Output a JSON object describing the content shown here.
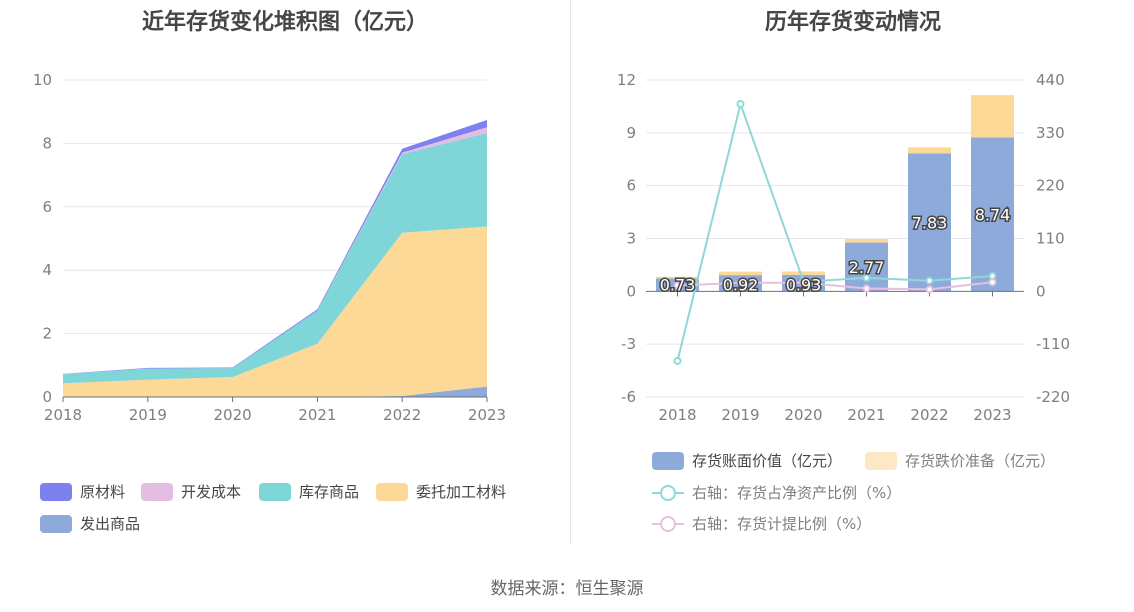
{
  "source_label": "数据来源：恒生聚源",
  "chart_data": [
    {
      "type": "area",
      "stacked": true,
      "title": "近年存货变化堆积图（亿元）",
      "categories": [
        "2018",
        "2019",
        "2020",
        "2021",
        "2022",
        "2023"
      ],
      "ylim": [
        0,
        10
      ],
      "yticks": [
        0,
        2,
        4,
        6,
        8,
        10
      ],
      "series": [
        {
          "name": "发出商品",
          "color": "#8eaadb",
          "values": [
            0.0,
            0.0,
            0.0,
            0.0,
            0.03,
            0.33
          ]
        },
        {
          "name": "委托加工材料",
          "color": "#fdd998",
          "values": [
            0.43,
            0.55,
            0.63,
            1.68,
            5.15,
            5.05
          ]
        },
        {
          "name": "库存商品",
          "color": "#7fd6d9",
          "values": [
            0.29,
            0.35,
            0.28,
            1.05,
            2.48,
            2.95
          ]
        },
        {
          "name": "开发成本",
          "color": "#e5bde0",
          "values": [
            0.0,
            0.0,
            0.0,
            0.0,
            0.05,
            0.18
          ]
        },
        {
          "name": "原材料",
          "color": "#7f80f0",
          "values": [
            0.01,
            0.02,
            0.02,
            0.04,
            0.12,
            0.23
          ]
        }
      ],
      "legend": [
        "原材料",
        "开发成本",
        "库存商品",
        "委托加工材料",
        "发出商品"
      ],
      "legend_position": "bottom-left"
    },
    {
      "type": "bar+line",
      "title": "历年存货变动情况",
      "categories": [
        "2018",
        "2019",
        "2020",
        "2021",
        "2022",
        "2023"
      ],
      "ylim_left": [
        -6,
        12
      ],
      "yticks_left": [
        -6,
        -3,
        0,
        3,
        6,
        9,
        12
      ],
      "ylim_right": [
        -220,
        440
      ],
      "yticks_right": [
        -220,
        -110,
        0,
        110,
        220,
        330,
        440
      ],
      "bars": [
        {
          "name": "存货账面价值（亿元）",
          "color": "#8eaadb",
          "values": [
            0.73,
            0.92,
            0.93,
            2.77,
            7.83,
            8.74
          ],
          "labels": [
            "0.73",
            "0.92",
            "0.93",
            "2.77",
            "7.83",
            "8.74"
          ]
        },
        {
          "name": "存货跌价准备（亿元）",
          "color": "#fdd998",
          "values": [
            0.1,
            0.2,
            0.2,
            0.2,
            0.35,
            2.4
          ]
        }
      ],
      "lines": [
        {
          "name": "右轴：存货占净资产比例（%）",
          "color": "#8fd8d8",
          "values": [
            -145,
            390,
            20,
            28,
            22,
            32
          ]
        },
        {
          "name": "右轴：存货计提比例（%）",
          "color": "#e7c0de",
          "values": [
            12,
            18,
            18,
            6,
            4,
            19
          ]
        }
      ],
      "legend": [
        "存货账面价值（亿元）",
        "存货跌价准备（亿元）",
        "右轴：存货占净资产比例（%）",
        "右轴：存货计提比例（%）"
      ],
      "legend_position": "bottom"
    }
  ]
}
